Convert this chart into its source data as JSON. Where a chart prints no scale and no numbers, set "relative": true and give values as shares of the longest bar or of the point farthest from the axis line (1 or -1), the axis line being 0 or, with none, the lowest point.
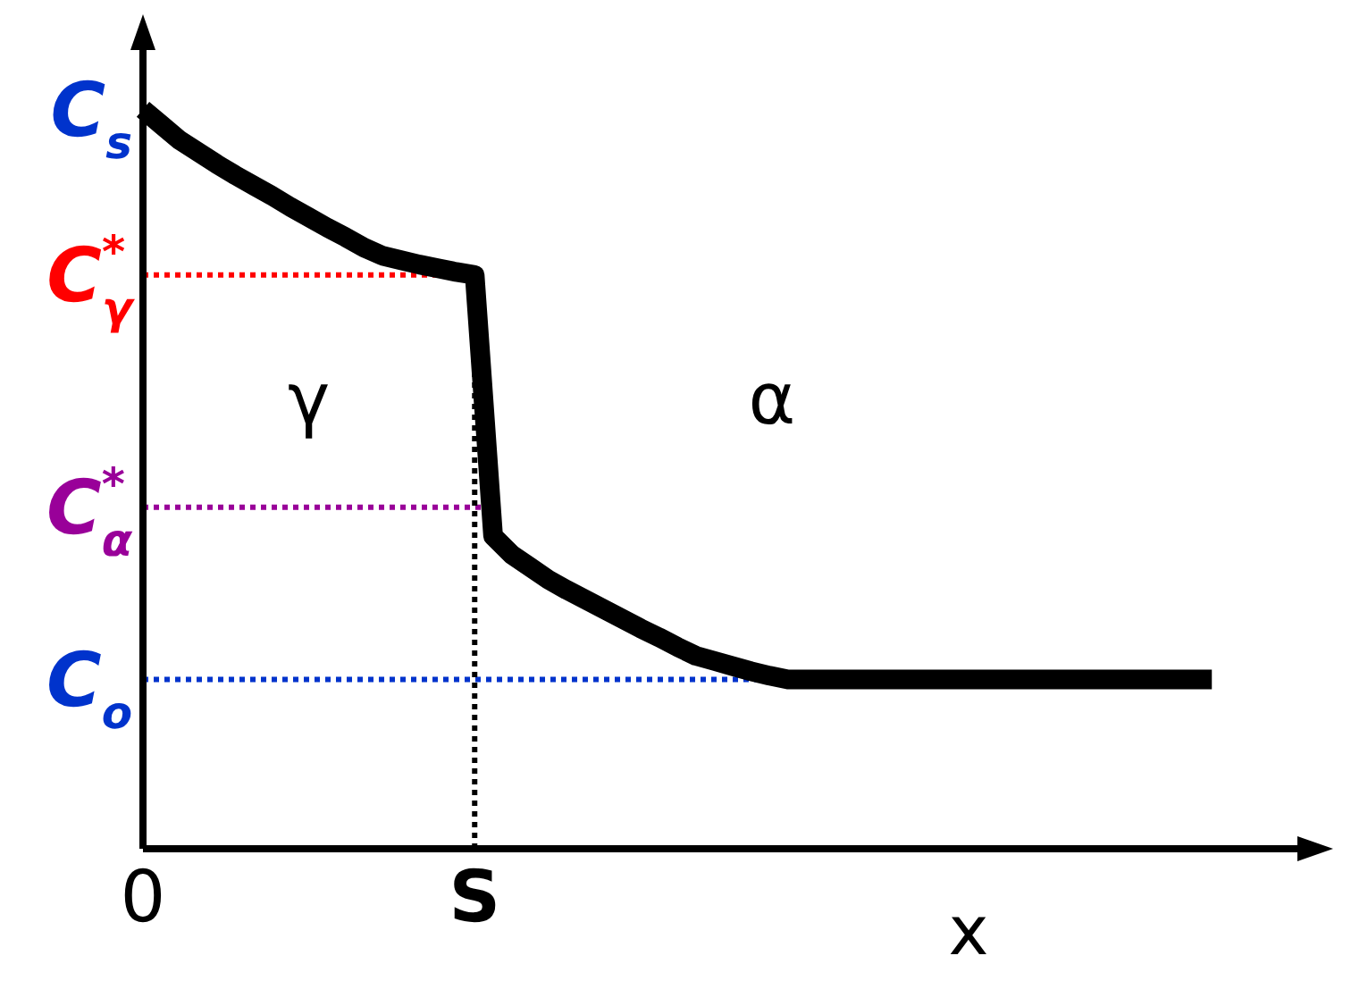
{
  "chart_data": {
    "type": "line",
    "xlabel": "x",
    "relative": true,
    "categories": [
      "0",
      null,
      null,
      null,
      null,
      null,
      null,
      null,
      null,
      null,
      null,
      null,
      null,
      null,
      null,
      null,
      null,
      null,
      "S",
      null,
      null,
      null,
      null,
      null,
      null,
      null,
      null,
      null,
      null,
      null,
      null,
      null,
      null,
      null,
      null,
      null,
      null,
      null,
      null,
      null,
      null,
      null,
      null,
      null,
      null,
      null,
      null,
      null,
      null,
      null,
      null,
      null,
      null,
      null,
      null,
      null,
      null,
      null,
      null,
      null,
      null,
      null,
      null,
      null,
      null
    ],
    "series": [
      {
        "color": "#000000",
        "values": [
          1.0,
          0.979,
          0.958,
          0.942,
          0.926,
          0.911,
          0.897,
          0.883,
          0.868,
          0.854,
          0.84,
          0.827,
          0.813,
          0.802,
          0.796,
          0.79,
          0.785,
          0.78,
          0.776,
          0.423,
          0.398,
          0.381,
          0.364,
          0.35,
          0.337,
          0.324,
          0.311,
          0.298,
          0.286,
          0.273,
          0.261,
          0.254,
          0.247,
          0.24,
          0.234,
          0.229,
          0.229,
          0.229,
          0.229,
          0.229,
          0.229,
          0.229,
          0.229,
          0.229,
          0.229,
          0.229,
          0.229,
          0.229,
          0.229,
          0.229,
          0.229,
          0.229,
          0.229,
          0.229,
          0.229,
          0.229,
          0.229,
          0.229,
          0.229,
          null,
          null,
          null,
          null,
          null,
          null
        ]
      }
    ],
    "ref_lines": [
      {
        "axis": "y",
        "value": 0.776,
        "label": "C$_{γ}$$^{*}$",
        "color": "#ff0000",
        "line_style": "dotted"
      },
      {
        "axis": "y",
        "value": 0.462,
        "label": "C$_{α}$$^{*}$",
        "color": "#990099",
        "line_style": "dotted"
      },
      {
        "axis": "y",
        "value": 0.229,
        "label": "C$_{o}$",
        "color": "#0033cc",
        "line_style": "dotted"
      },
      {
        "axis": "x",
        "value": "S",
        "color": "#000000",
        "line_style": "dotted"
      }
    ],
    "annotations": [
      "C$_{s}$",
      "γ",
      "α"
    ],
    "legend": false,
    "marker": "none",
    "line_style": "solid"
  }
}
